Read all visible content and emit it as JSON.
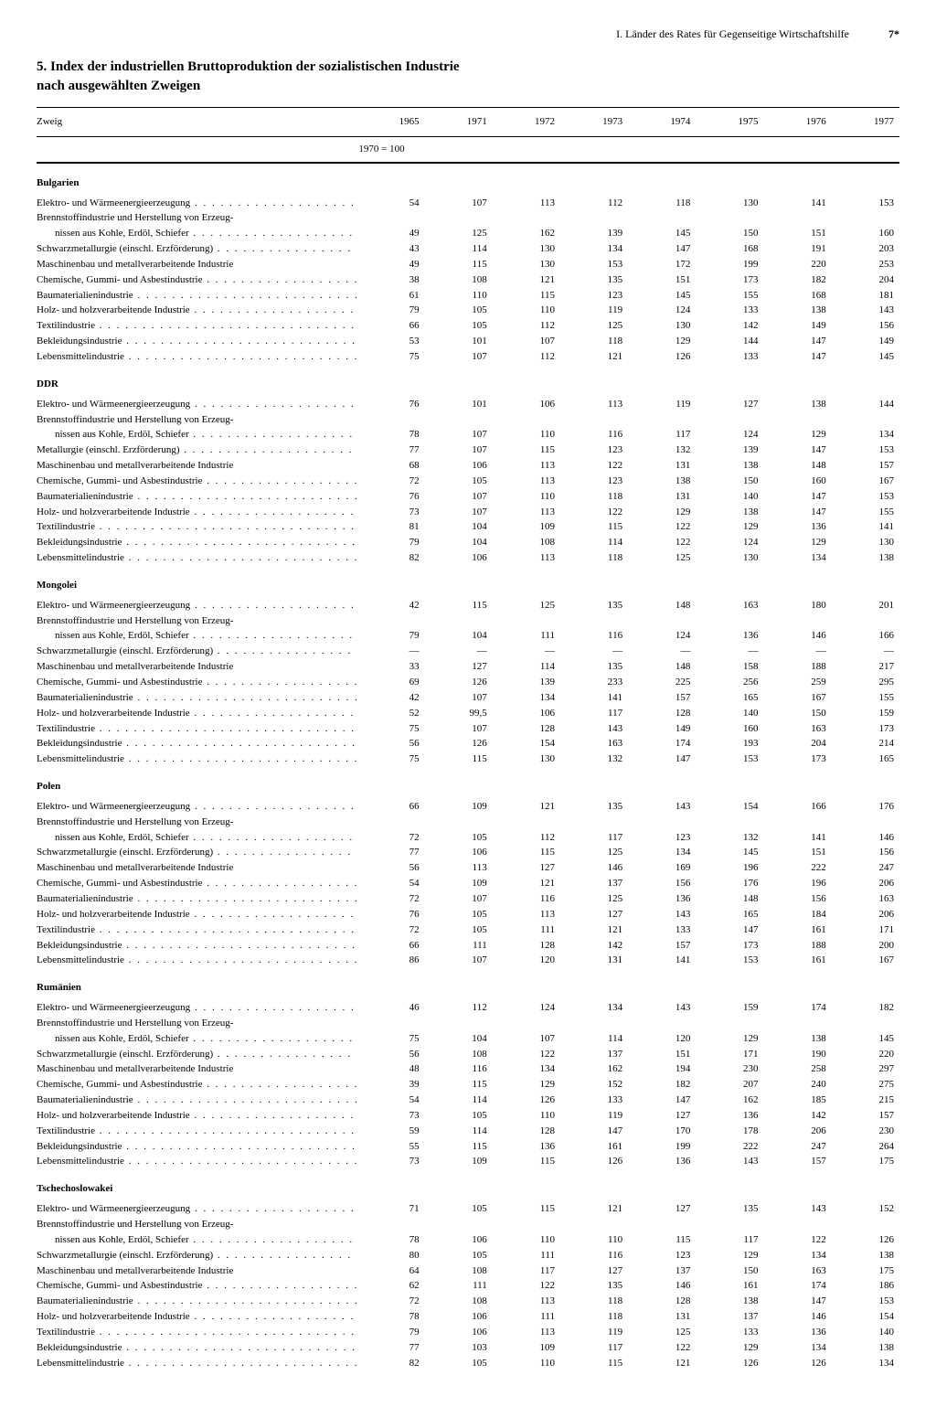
{
  "header": {
    "running": "I. Länder des Rates für Gegenseitige Wirtschaftshilfe",
    "pagenum": "7*"
  },
  "title_line1": "5. Index der industriellen Bruttoproduktion der sozialistischen Industrie",
  "title_line2": "nach ausgewählten Zweigen",
  "table": {
    "col_label": "Zweig",
    "years": [
      "1965",
      "1971",
      "1972",
      "1973",
      "1974",
      "1975",
      "1976",
      "1977"
    ],
    "baseline": "1970 = 100",
    "row_labels": [
      {
        "k": "r0",
        "t": "Elektro- und Wärmeenergieerzeugung"
      },
      {
        "k": "r1",
        "t": "Brennstoffindustrie und Herstellung von Erzeug-",
        "nodots": true
      },
      {
        "k": "r1b",
        "t": "nissen aus Kohle, Erdöl, Schiefer",
        "indent": true
      },
      {
        "k": "r2",
        "t": "Schwarzmetallurgie (einschl. Erzförderung)"
      },
      {
        "k": "r3",
        "t": "Maschinenbau und metallverarbeitende Industrie",
        "nodots": true
      },
      {
        "k": "r4",
        "t": "Chemische, Gummi- und Asbestindustrie"
      },
      {
        "k": "r5",
        "t": "Baumaterialienindustrie"
      },
      {
        "k": "r6",
        "t": "Holz- und holzverarbeitende Industrie"
      },
      {
        "k": "r7",
        "t": "Textilindustrie"
      },
      {
        "k": "r8",
        "t": "Bekleidungsindustrie"
      },
      {
        "k": "r9",
        "t": "Lebensmittelindustrie"
      }
    ],
    "row_labels_metall": [
      {
        "k": "r0",
        "t": "Elektro- und Wärmeenergieerzeugung"
      },
      {
        "k": "r1",
        "t": "Brennstoffindustrie und Herstellung von Erzeug-",
        "nodots": true
      },
      {
        "k": "r1b",
        "t": "nissen aus Kohle, Erdöl, Schiefer",
        "indent": true
      },
      {
        "k": "r2",
        "t": "Metallurgie (einschl. Erzförderung)"
      },
      {
        "k": "r3",
        "t": "Maschinenbau und metallverarbeitende Industrie",
        "nodots": true
      },
      {
        "k": "r4",
        "t": "Chemische, Gummi- und Asbestindustrie"
      },
      {
        "k": "r5",
        "t": "Baumaterialienindustrie"
      },
      {
        "k": "r6",
        "t": "Holz- und holzverarbeitende Industrie"
      },
      {
        "k": "r7",
        "t": "Textilindustrie"
      },
      {
        "k": "r8",
        "t": "Bekleidungsindustrie"
      },
      {
        "k": "r9",
        "t": "Lebensmittelindustrie"
      }
    ],
    "sections": [
      {
        "name": "Bulgarien",
        "labels": "row_labels",
        "data": {
          "r0": [
            "54",
            "107",
            "113",
            "112",
            "118",
            "130",
            "141",
            "153"
          ],
          "r1": [
            "",
            "",
            "",
            "",
            "",
            "",
            "",
            ""
          ],
          "r1b": [
            "49",
            "125",
            "162",
            "139",
            "145",
            "150",
            "151",
            "160"
          ],
          "r2": [
            "43",
            "114",
            "130",
            "134",
            "147",
            "168",
            "191",
            "203"
          ],
          "r3": [
            "49",
            "115",
            "130",
            "153",
            "172",
            "199",
            "220",
            "253"
          ],
          "r4": [
            "38",
            "108",
            "121",
            "135",
            "151",
            "173",
            "182",
            "204"
          ],
          "r5": [
            "61",
            "110",
            "115",
            "123",
            "145",
            "155",
            "168",
            "181"
          ],
          "r6": [
            "79",
            "105",
            "110",
            "119",
            "124",
            "133",
            "138",
            "143"
          ],
          "r7": [
            "66",
            "105",
            "112",
            "125",
            "130",
            "142",
            "149",
            "156"
          ],
          "r8": [
            "53",
            "101",
            "107",
            "118",
            "129",
            "144",
            "147",
            "149"
          ],
          "r9": [
            "75",
            "107",
            "112",
            "121",
            "126",
            "133",
            "147",
            "145"
          ]
        }
      },
      {
        "name": "DDR",
        "labels": "row_labels_metall",
        "data": {
          "r0": [
            "76",
            "101",
            "106",
            "113",
            "119",
            "127",
            "138",
            "144"
          ],
          "r1": [
            "",
            "",
            "",
            "",
            "",
            "",
            "",
            ""
          ],
          "r1b": [
            "78",
            "107",
            "110",
            "116",
            "117",
            "124",
            "129",
            "134"
          ],
          "r2": [
            "77",
            "107",
            "115",
            "123",
            "132",
            "139",
            "147",
            "153"
          ],
          "r3": [
            "68",
            "106",
            "113",
            "122",
            "131",
            "138",
            "148",
            "157"
          ],
          "r4": [
            "72",
            "105",
            "113",
            "123",
            "138",
            "150",
            "160",
            "167"
          ],
          "r5": [
            "76",
            "107",
            "110",
            "118",
            "131",
            "140",
            "147",
            "153"
          ],
          "r6": [
            "73",
            "107",
            "113",
            "122",
            "129",
            "138",
            "147",
            "155"
          ],
          "r7": [
            "81",
            "104",
            "109",
            "115",
            "122",
            "129",
            "136",
            "141"
          ],
          "r8": [
            "79",
            "104",
            "108",
            "114",
            "122",
            "124",
            "129",
            "130"
          ],
          "r9": [
            "82",
            "106",
            "113",
            "118",
            "125",
            "130",
            "134",
            "138"
          ]
        }
      },
      {
        "name": "Mongolei",
        "labels": "row_labels",
        "data": {
          "r0": [
            "42",
            "115",
            "125",
            "135",
            "148",
            "163",
            "180",
            "201"
          ],
          "r1": [
            "",
            "",
            "",
            "",
            "",
            "",
            "",
            ""
          ],
          "r1b": [
            "79",
            "104",
            "111",
            "116",
            "124",
            "136",
            "146",
            "166"
          ],
          "r2": [
            "—",
            "—",
            "—",
            "—",
            "—",
            "—",
            "—",
            "—"
          ],
          "r3": [
            "33",
            "127",
            "114",
            "135",
            "148",
            "158",
            "188",
            "217"
          ],
          "r4": [
            "69",
            "126",
            "139",
            "233",
            "225",
            "256",
            "259",
            "295"
          ],
          "r5": [
            "42",
            "107",
            "134",
            "141",
            "157",
            "165",
            "167",
            "155"
          ],
          "r6": [
            "52",
            "99,5",
            "106",
            "117",
            "128",
            "140",
            "150",
            "159"
          ],
          "r7": [
            "75",
            "107",
            "128",
            "143",
            "149",
            "160",
            "163",
            "173"
          ],
          "r8": [
            "56",
            "126",
            "154",
            "163",
            "174",
            "193",
            "204",
            "214"
          ],
          "r9": [
            "75",
            "115",
            "130",
            "132",
            "147",
            "153",
            "173",
            "165"
          ]
        }
      },
      {
        "name": "Polen",
        "labels": "row_labels",
        "data": {
          "r0": [
            "66",
            "109",
            "121",
            "135",
            "143",
            "154",
            "166",
            "176"
          ],
          "r1": [
            "",
            "",
            "",
            "",
            "",
            "",
            "",
            ""
          ],
          "r1b": [
            "72",
            "105",
            "112",
            "117",
            "123",
            "132",
            "141",
            "146"
          ],
          "r2": [
            "77",
            "106",
            "115",
            "125",
            "134",
            "145",
            "151",
            "156"
          ],
          "r3": [
            "56",
            "113",
            "127",
            "146",
            "169",
            "196",
            "222",
            "247"
          ],
          "r4": [
            "54",
            "109",
            "121",
            "137",
            "156",
            "176",
            "196",
            "206"
          ],
          "r5": [
            "72",
            "107",
            "116",
            "125",
            "136",
            "148",
            "156",
            "163"
          ],
          "r6": [
            "76",
            "105",
            "113",
            "127",
            "143",
            "165",
            "184",
            "206"
          ],
          "r7": [
            "72",
            "105",
            "111",
            "121",
            "133",
            "147",
            "161",
            "171"
          ],
          "r8": [
            "66",
            "111",
            "128",
            "142",
            "157",
            "173",
            "188",
            "200"
          ],
          "r9": [
            "86",
            "107",
            "120",
            "131",
            "141",
            "153",
            "161",
            "167"
          ]
        }
      },
      {
        "name": "Rumänien",
        "labels": "row_labels",
        "data": {
          "r0": [
            "46",
            "112",
            "124",
            "134",
            "143",
            "159",
            "174",
            "182"
          ],
          "r1": [
            "",
            "",
            "",
            "",
            "",
            "",
            "",
            ""
          ],
          "r1b": [
            "75",
            "104",
            "107",
            "114",
            "120",
            "129",
            "138",
            "145"
          ],
          "r2": [
            "56",
            "108",
            "122",
            "137",
            "151",
            "171",
            "190",
            "220"
          ],
          "r3": [
            "48",
            "116",
            "134",
            "162",
            "194",
            "230",
            "258",
            "297"
          ],
          "r4": [
            "39",
            "115",
            "129",
            "152",
            "182",
            "207",
            "240",
            "275"
          ],
          "r5": [
            "54",
            "114",
            "126",
            "133",
            "147",
            "162",
            "185",
            "215"
          ],
          "r6": [
            "73",
            "105",
            "110",
            "119",
            "127",
            "136",
            "142",
            "157"
          ],
          "r7": [
            "59",
            "114",
            "128",
            "147",
            "170",
            "178",
            "206",
            "230"
          ],
          "r8": [
            "55",
            "115",
            "136",
            "161",
            "199",
            "222",
            "247",
            "264"
          ],
          "r9": [
            "73",
            "109",
            "115",
            "126",
            "136",
            "143",
            "157",
            "175"
          ]
        }
      },
      {
        "name": "Tschechoslowakei",
        "labels": "row_labels",
        "data": {
          "r0": [
            "71",
            "105",
            "115",
            "121",
            "127",
            "135",
            "143",
            "152"
          ],
          "r1": [
            "",
            "",
            "",
            "",
            "",
            "",
            "",
            ""
          ],
          "r1b": [
            "78",
            "106",
            "110",
            "110",
            "115",
            "117",
            "122",
            "126"
          ],
          "r2": [
            "80",
            "105",
            "111",
            "116",
            "123",
            "129",
            "134",
            "138"
          ],
          "r3": [
            "64",
            "108",
            "117",
            "127",
            "137",
            "150",
            "163",
            "175"
          ],
          "r4": [
            "62",
            "111",
            "122",
            "135",
            "146",
            "161",
            "174",
            "186"
          ],
          "r5": [
            "72",
            "108",
            "113",
            "118",
            "128",
            "138",
            "147",
            "153"
          ],
          "r6": [
            "78",
            "106",
            "111",
            "118",
            "131",
            "137",
            "146",
            "154"
          ],
          "r7": [
            "79",
            "106",
            "113",
            "119",
            "125",
            "133",
            "136",
            "140"
          ],
          "r8": [
            "77",
            "103",
            "109",
            "117",
            "122",
            "129",
            "134",
            "138"
          ],
          "r9": [
            "82",
            "105",
            "110",
            "115",
            "121",
            "126",
            "126",
            "134"
          ]
        }
      }
    ]
  }
}
